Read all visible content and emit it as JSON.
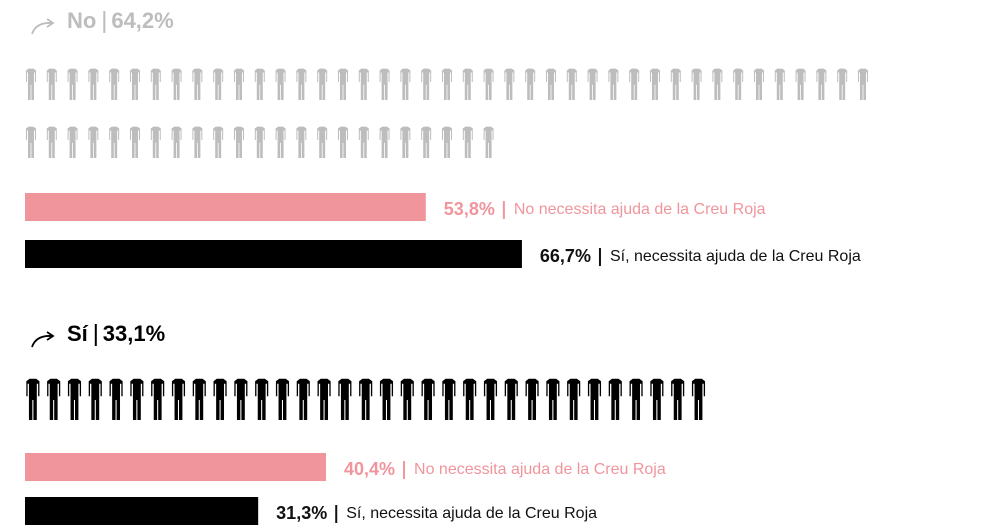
{
  "chart_data": [
    {
      "type": "bar",
      "title": "No",
      "value": 64.2,
      "value_label": "64,2%",
      "icon_count": 64,
      "icon_color": "#bdbdbd",
      "categories": [
        "No necessita ajuda de la Creu Roja",
        "Sí, necessita ajuda de la Creu Roja"
      ],
      "values": [
        53.8,
        66.7
      ],
      "value_labels": [
        "53,8%",
        "66,7%"
      ],
      "colors": [
        "#f0959c",
        "#000000"
      ]
    },
    {
      "type": "bar",
      "title": "Sí",
      "value": 33.1,
      "value_label": "33,1%",
      "icon_count": 33,
      "icon_color": "#000000",
      "categories": [
        "No necessita ajuda de la Creu Roja",
        "Sí, necessita ajuda de la Creu Roja"
      ],
      "values": [
        40.4,
        31.3
      ],
      "value_labels": [
        "40,4%",
        "31,3%"
      ],
      "colors": [
        "#f0959c",
        "#000000"
      ]
    }
  ]
}
